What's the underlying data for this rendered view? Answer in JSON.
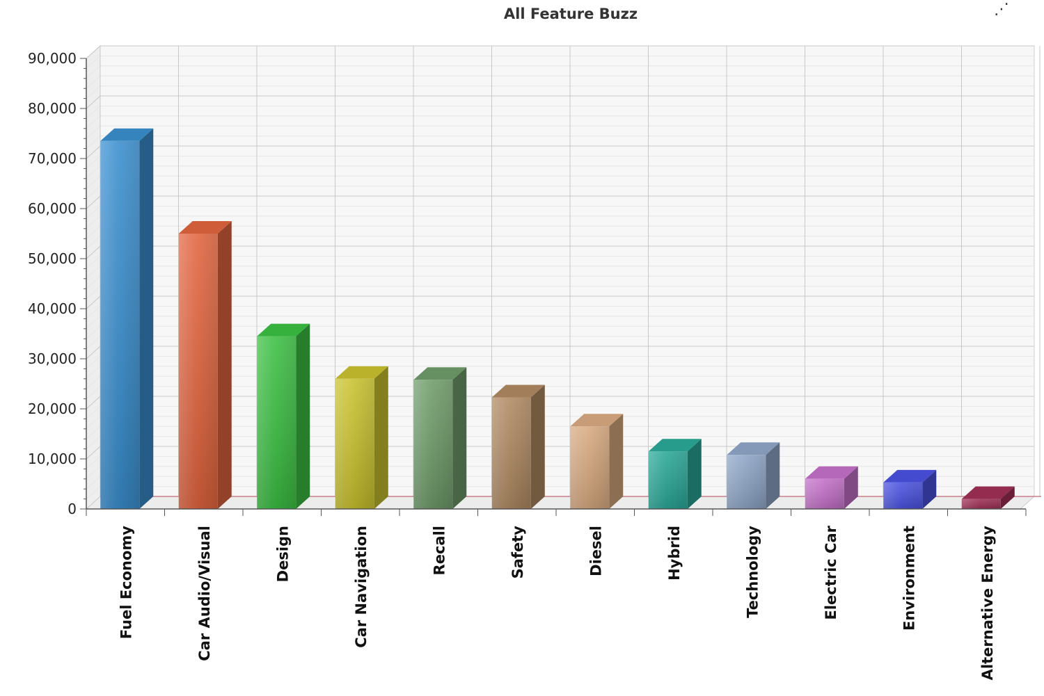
{
  "chart_data": {
    "type": "bar",
    "title": "All Feature Buzz",
    "xlabel": "",
    "ylabel": "",
    "ylim": [
      0,
      90000
    ],
    "y_ticks": [
      "0",
      "10,000",
      "20,000",
      "30,000",
      "40,000",
      "50,000",
      "60,000",
      "70,000",
      "80,000",
      "90,000"
    ],
    "grid": true,
    "categories": [
      "Fuel Economy",
      "Car Audio/Visual",
      "Design",
      "Car Navigation",
      "Recall",
      "Safety",
      "Diesel",
      "Hybrid",
      "Technology",
      "Electric Car",
      "Environment",
      "Alternative Energy"
    ],
    "values": [
      73500,
      55000,
      34500,
      26000,
      25800,
      22300,
      16500,
      11500,
      10800,
      6000,
      5300,
      2000
    ],
    "colors": [
      "#3a8fcf",
      "#e2653f",
      "#3cc043",
      "#c9c22e",
      "#6f9c6a",
      "#b08a62",
      "#d8aa80",
      "#2aa898",
      "#8fa6c8",
      "#c571c9",
      "#4a52e0",
      "#a03055"
    ]
  }
}
